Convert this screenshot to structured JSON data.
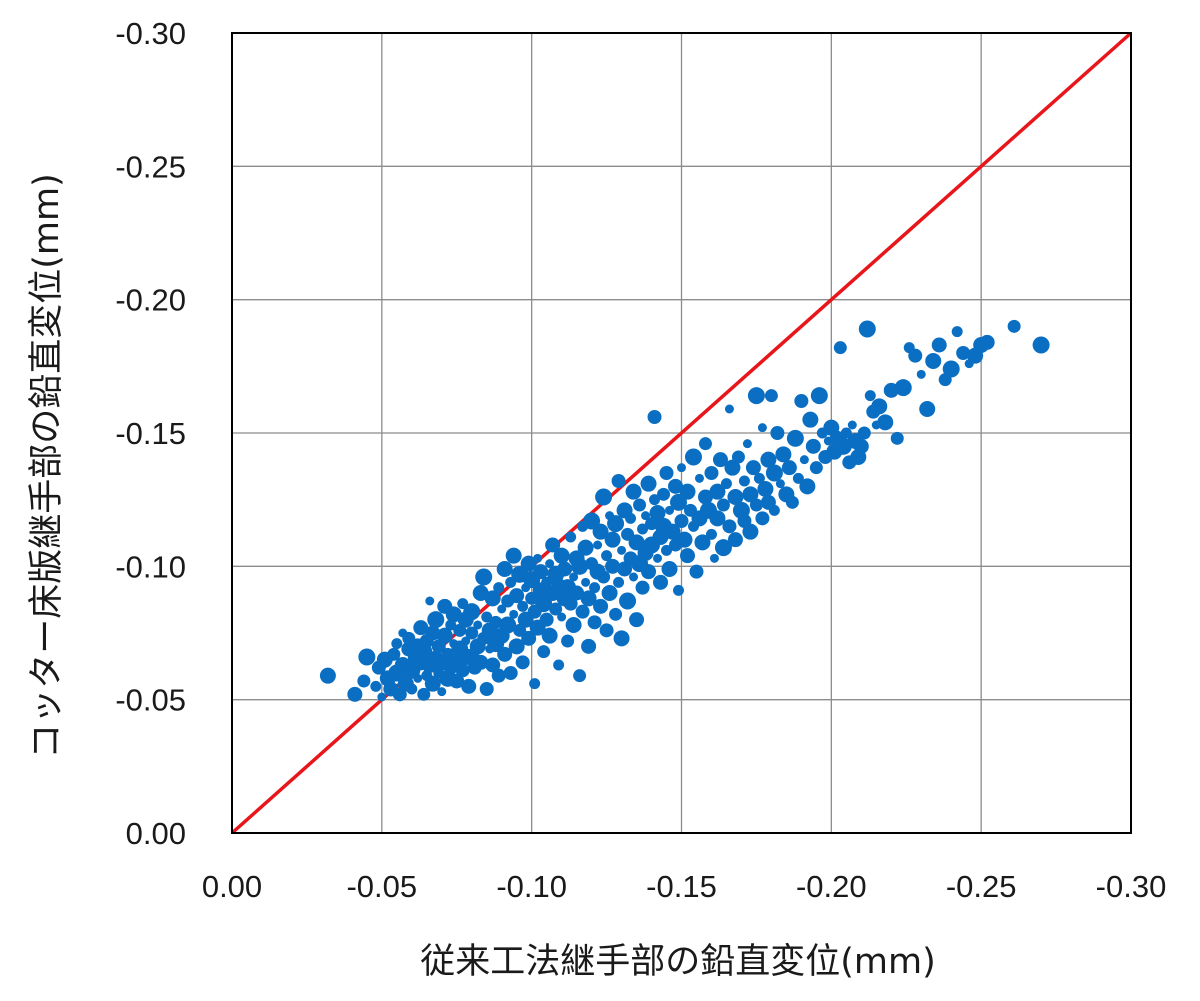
{
  "chart_data": {
    "type": "scatter",
    "xlabel": "従来工法継手部の鉛直変位(mm)",
    "ylabel": "コッター床版継手部の鉛直変位(mm)",
    "xlim": [
      0,
      -0.3
    ],
    "ylim": [
      0,
      -0.3
    ],
    "x_ticks": [
      "0.00",
      "-0.05",
      "-0.10",
      "-0.15",
      "-0.20",
      "-0.25",
      "-0.30"
    ],
    "y_ticks": [
      "0.00",
      "-0.05",
      "-0.10",
      "-0.15",
      "-0.20",
      "-0.25",
      "-0.30"
    ],
    "grid": true,
    "reference_line": {
      "from": [
        0,
        0
      ],
      "to": [
        -0.3,
        -0.3
      ],
      "color": "#e8161b"
    },
    "marker_color": "#0a6fc2",
    "points": [
      [
        -0.032,
        -0.059
      ],
      [
        -0.041,
        -0.052
      ],
      [
        -0.044,
        -0.057
      ],
      [
        -0.045,
        -0.066
      ],
      [
        -0.048,
        -0.055
      ],
      [
        -0.049,
        -0.062
      ],
      [
        -0.05,
        -0.051
      ],
      [
        -0.051,
        -0.065
      ],
      [
        -0.052,
        -0.058
      ],
      [
        -0.053,
        -0.054
      ],
      [
        -0.054,
        -0.067
      ],
      [
        -0.055,
        -0.06
      ],
      [
        -0.055,
        -0.071
      ],
      [
        -0.056,
        -0.052
      ],
      [
        -0.057,
        -0.075
      ],
      [
        -0.057,
        -0.063
      ],
      [
        -0.058,
        -0.056
      ],
      [
        -0.059,
        -0.069
      ],
      [
        -0.059,
        -0.073
      ],
      [
        -0.06,
        -0.061
      ],
      [
        -0.06,
        -0.054
      ],
      [
        -0.061,
        -0.066
      ],
      [
        -0.062,
        -0.058
      ],
      [
        -0.062,
        -0.07
      ],
      [
        -0.063,
        -0.064
      ],
      [
        -0.063,
        -0.077
      ],
      [
        -0.064,
        -0.052
      ],
      [
        -0.064,
        -0.068
      ],
      [
        -0.065,
        -0.059
      ],
      [
        -0.065,
        -0.072
      ],
      [
        -0.066,
        -0.087
      ],
      [
        -0.066,
        -0.063
      ],
      [
        -0.067,
        -0.056
      ],
      [
        -0.067,
        -0.075
      ],
      [
        -0.068,
        -0.066
      ],
      [
        -0.068,
        -0.08
      ],
      [
        -0.069,
        -0.06
      ],
      [
        -0.069,
        -0.07
      ],
      [
        -0.07,
        -0.053
      ],
      [
        -0.07,
        -0.064
      ],
      [
        -0.071,
        -0.074
      ],
      [
        -0.071,
        -0.085
      ],
      [
        -0.072,
        -0.067
      ],
      [
        -0.072,
        -0.058
      ],
      [
        -0.073,
        -0.078
      ],
      [
        -0.073,
        -0.062
      ],
      [
        -0.074,
        -0.071
      ],
      [
        -0.074,
        -0.082
      ],
      [
        -0.075,
        -0.065
      ],
      [
        -0.075,
        -0.057
      ],
      [
        -0.076,
        -0.076
      ],
      [
        -0.076,
        -0.069
      ],
      [
        -0.077,
        -0.086
      ],
      [
        -0.077,
        -0.061
      ],
      [
        -0.078,
        -0.072
      ],
      [
        -0.078,
        -0.08
      ],
      [
        -0.079,
        -0.066
      ],
      [
        -0.079,
        -0.055
      ],
      [
        -0.08,
        -0.075
      ],
      [
        -0.08,
        -0.083
      ],
      [
        -0.081,
        -0.068
      ],
      [
        -0.081,
        -0.062
      ],
      [
        -0.082,
        -0.078
      ],
      [
        -0.082,
        -0.07
      ],
      [
        -0.083,
        -0.09
      ],
      [
        -0.083,
        -0.064
      ],
      [
        -0.084,
        -0.073
      ],
      [
        -0.084,
        -0.096
      ],
      [
        -0.085,
        -0.081
      ],
      [
        -0.085,
        -0.054
      ],
      [
        -0.086,
        -0.069
      ],
      [
        -0.086,
        -0.076
      ],
      [
        -0.087,
        -0.088
      ],
      [
        -0.087,
        -0.063
      ],
      [
        -0.088,
        -0.079
      ],
      [
        -0.088,
        -0.071
      ],
      [
        -0.089,
        -0.092
      ],
      [
        -0.089,
        -0.059
      ],
      [
        -0.09,
        -0.084
      ],
      [
        -0.09,
        -0.074
      ],
      [
        -0.091,
        -0.099
      ],
      [
        -0.091,
        -0.067
      ],
      [
        -0.092,
        -0.087
      ],
      [
        -0.092,
        -0.078
      ],
      [
        -0.093,
        -0.094
      ],
      [
        -0.093,
        -0.06
      ],
      [
        -0.094,
        -0.082
      ],
      [
        -0.094,
        -0.104
      ],
      [
        -0.095,
        -0.07
      ],
      [
        -0.095,
        -0.089
      ],
      [
        -0.096,
        -0.076
      ],
      [
        -0.096,
        -0.097
      ],
      [
        -0.097,
        -0.085
      ],
      [
        -0.097,
        -0.064
      ],
      [
        -0.098,
        -0.092
      ],
      [
        -0.098,
        -0.08
      ],
      [
        -0.099,
        -0.101
      ],
      [
        -0.099,
        -0.073
      ],
      [
        -0.1,
        -0.088
      ],
      [
        -0.1,
        -0.095
      ],
      [
        -0.101,
        -0.056
      ],
      [
        -0.101,
        -0.083
      ],
      [
        -0.102,
        -0.103
      ],
      [
        -0.102,
        -0.077
      ],
      [
        -0.103,
        -0.091
      ],
      [
        -0.103,
        -0.098
      ],
      [
        -0.104,
        -0.068
      ],
      [
        -0.104,
        -0.086
      ],
      [
        -0.105,
        -0.094
      ],
      [
        -0.105,
        -0.08
      ],
      [
        -0.106,
        -0.101
      ],
      [
        -0.106,
        -0.074
      ],
      [
        -0.107,
        -0.09
      ],
      [
        -0.107,
        -0.108
      ],
      [
        -0.108,
        -0.084
      ],
      [
        -0.108,
        -0.097
      ],
      [
        -0.109,
        -0.063
      ],
      [
        -0.109,
        -0.093
      ],
      [
        -0.11,
        -0.081
      ],
      [
        -0.11,
        -0.104
      ],
      [
        -0.111,
        -0.088
      ],
      [
        -0.111,
        -0.099
      ],
      [
        -0.112,
        -0.072
      ],
      [
        -0.112,
        -0.092
      ],
      [
        -0.113,
        -0.111
      ],
      [
        -0.113,
        -0.086
      ],
      [
        -0.114,
        -0.096
      ],
      [
        -0.114,
        -0.078
      ],
      [
        -0.115,
        -0.103
      ],
      [
        -0.115,
        -0.09
      ],
      [
        -0.116,
        -0.059
      ],
      [
        -0.116,
        -0.1
      ],
      [
        -0.117,
        -0.115
      ],
      [
        -0.117,
        -0.083
      ],
      [
        -0.118,
        -0.094
      ],
      [
        -0.118,
        -0.107
      ],
      [
        -0.119,
        -0.088
      ],
      [
        -0.119,
        -0.07
      ],
      [
        -0.12,
        -0.101
      ],
      [
        -0.12,
        -0.117
      ],
      [
        -0.121,
        -0.092
      ],
      [
        -0.121,
        -0.079
      ],
      [
        -0.122,
        -0.108
      ],
      [
        -0.122,
        -0.098
      ],
      [
        -0.123,
        -0.113
      ],
      [
        -0.123,
        -0.085
      ],
      [
        -0.124,
        -0.096
      ],
      [
        -0.124,
        -0.126
      ],
      [
        -0.125,
        -0.104
      ],
      [
        -0.125,
        -0.076
      ],
      [
        -0.126,
        -0.119
      ],
      [
        -0.126,
        -0.09
      ],
      [
        -0.127,
        -0.11
      ],
      [
        -0.127,
        -0.1
      ],
      [
        -0.128,
        -0.082
      ],
      [
        -0.128,
        -0.116
      ],
      [
        -0.129,
        -0.094
      ],
      [
        -0.129,
        -0.132
      ],
      [
        -0.13,
        -0.106
      ],
      [
        -0.13,
        -0.073
      ],
      [
        -0.131,
        -0.121
      ],
      [
        -0.131,
        -0.099
      ],
      [
        -0.132,
        -0.112
      ],
      [
        -0.132,
        -0.087
      ],
      [
        -0.133,
        -0.118
      ],
      [
        -0.133,
        -0.103
      ],
      [
        -0.134,
        -0.096
      ],
      [
        -0.134,
        -0.128
      ],
      [
        -0.135,
        -0.109
      ],
      [
        -0.135,
        -0.08
      ],
      [
        -0.136,
        -0.123
      ],
      [
        -0.136,
        -0.101
      ],
      [
        -0.137,
        -0.114
      ],
      [
        -0.137,
        -0.092
      ],
      [
        -0.138,
        -0.119
      ],
      [
        -0.138,
        -0.105
      ],
      [
        -0.139,
        -0.131
      ],
      [
        -0.139,
        -0.098
      ],
      [
        -0.14,
        -0.116
      ],
      [
        -0.14,
        -0.108
      ],
      [
        -0.141,
        -0.125
      ],
      [
        -0.141,
        -0.156
      ],
      [
        -0.142,
        -0.103
      ],
      [
        -0.142,
        -0.12
      ],
      [
        -0.143,
        -0.111
      ],
      [
        -0.143,
        -0.094
      ],
      [
        -0.144,
        -0.127
      ],
      [
        -0.144,
        -0.115
      ],
      [
        -0.145,
        -0.106
      ],
      [
        -0.145,
        -0.135
      ],
      [
        -0.146,
        -0.121
      ],
      [
        -0.146,
        -0.099
      ],
      [
        -0.147,
        -0.113
      ],
      [
        -0.148,
        -0.13
      ],
      [
        -0.148,
        -0.108
      ],
      [
        -0.149,
        -0.124
      ],
      [
        -0.149,
        -0.091
      ],
      [
        -0.15,
        -0.117
      ],
      [
        -0.15,
        -0.137
      ],
      [
        -0.151,
        -0.11
      ],
      [
        -0.152,
        -0.128
      ],
      [
        -0.152,
        -0.104
      ],
      [
        -0.153,
        -0.121
      ],
      [
        -0.154,
        -0.141
      ],
      [
        -0.154,
        -0.115
      ],
      [
        -0.155,
        -0.098
      ],
      [
        -0.156,
        -0.133
      ],
      [
        -0.156,
        -0.118
      ],
      [
        -0.157,
        -0.109
      ],
      [
        -0.158,
        -0.126
      ],
      [
        -0.158,
        -0.146
      ],
      [
        -0.159,
        -0.121
      ],
      [
        -0.16,
        -0.112
      ],
      [
        -0.16,
        -0.135
      ],
      [
        -0.161,
        -0.103
      ],
      [
        -0.162,
        -0.128
      ],
      [
        -0.162,
        -0.118
      ],
      [
        -0.163,
        -0.14
      ],
      [
        -0.164,
        -0.123
      ],
      [
        -0.164,
        -0.107
      ],
      [
        -0.165,
        -0.131
      ],
      [
        -0.166,
        -0.115
      ],
      [
        -0.166,
        -0.159
      ],
      [
        -0.167,
        -0.137
      ],
      [
        -0.168,
        -0.126
      ],
      [
        -0.168,
        -0.11
      ],
      [
        -0.169,
        -0.141
      ],
      [
        -0.17,
        -0.121
      ],
      [
        -0.171,
        -0.132
      ],
      [
        -0.171,
        -0.117
      ],
      [
        -0.172,
        -0.146
      ],
      [
        -0.173,
        -0.127
      ],
      [
        -0.173,
        -0.113
      ],
      [
        -0.174,
        -0.137
      ],
      [
        -0.175,
        -0.123
      ],
      [
        -0.175,
        -0.164
      ],
      [
        -0.176,
        -0.133
      ],
      [
        -0.177,
        -0.118
      ],
      [
        -0.177,
        -0.152
      ],
      [
        -0.178,
        -0.129
      ],
      [
        -0.179,
        -0.14
      ],
      [
        -0.179,
        -0.124
      ],
      [
        -0.18,
        -0.164
      ],
      [
        -0.181,
        -0.135
      ],
      [
        -0.181,
        -0.121
      ],
      [
        -0.182,
        -0.15
      ],
      [
        -0.183,
        -0.131
      ],
      [
        -0.184,
        -0.142
      ],
      [
        -0.185,
        -0.127
      ],
      [
        -0.186,
        -0.137
      ],
      [
        -0.187,
        -0.124
      ],
      [
        -0.188,
        -0.148
      ],
      [
        -0.189,
        -0.133
      ],
      [
        -0.19,
        -0.162
      ],
      [
        -0.191,
        -0.14
      ],
      [
        -0.192,
        -0.13
      ],
      [
        -0.193,
        -0.155
      ],
      [
        -0.194,
        -0.145
      ],
      [
        -0.195,
        -0.137
      ],
      [
        -0.196,
        -0.164
      ],
      [
        -0.197,
        -0.15
      ],
      [
        -0.198,
        -0.141
      ],
      [
        -0.199,
        -0.147
      ],
      [
        -0.2,
        -0.152
      ],
      [
        -0.201,
        -0.143
      ],
      [
        -0.202,
        -0.148
      ],
      [
        -0.203,
        -0.182
      ],
      [
        -0.204,
        -0.145
      ],
      [
        -0.205,
        -0.15
      ],
      [
        -0.206,
        -0.139
      ],
      [
        -0.207,
        -0.153
      ],
      [
        -0.208,
        -0.147
      ],
      [
        -0.209,
        -0.141
      ],
      [
        -0.21,
        -0.145
      ],
      [
        -0.211,
        -0.15
      ],
      [
        -0.212,
        -0.189
      ],
      [
        -0.213,
        -0.164
      ],
      [
        -0.214,
        -0.158
      ],
      [
        -0.215,
        -0.153
      ],
      [
        -0.216,
        -0.16
      ],
      [
        -0.218,
        -0.154
      ],
      [
        -0.22,
        -0.166
      ],
      [
        -0.222,
        -0.148
      ],
      [
        -0.224,
        -0.167
      ],
      [
        -0.226,
        -0.182
      ],
      [
        -0.228,
        -0.179
      ],
      [
        -0.23,
        -0.172
      ],
      [
        -0.232,
        -0.159
      ],
      [
        -0.234,
        -0.177
      ],
      [
        -0.236,
        -0.183
      ],
      [
        -0.238,
        -0.17
      ],
      [
        -0.24,
        -0.174
      ],
      [
        -0.242,
        -0.188
      ],
      [
        -0.244,
        -0.18
      ],
      [
        -0.246,
        -0.176
      ],
      [
        -0.248,
        -0.179
      ],
      [
        -0.25,
        -0.183
      ],
      [
        -0.252,
        -0.184
      ],
      [
        -0.261,
        -0.19
      ],
      [
        -0.27,
        -0.183
      ]
    ]
  }
}
